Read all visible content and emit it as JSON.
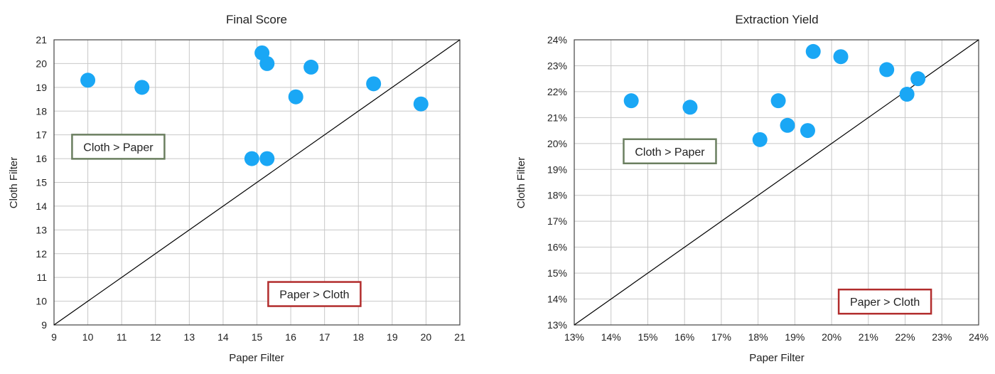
{
  "colors": {
    "point": "#1aa7f5",
    "grid": "#c8c8c8",
    "axis": "#444444",
    "diagonal": "#000000",
    "box_green": "#6b7f60",
    "box_red": "#b22d2d"
  },
  "chart_data": [
    {
      "type": "scatter",
      "title": "Final Score",
      "xlabel": "Paper Filter",
      "ylabel": "Cloth Filter",
      "xlim": [
        9,
        21
      ],
      "ylim": [
        9,
        21
      ],
      "xticks": [
        "9",
        "10",
        "11",
        "12",
        "13",
        "14",
        "15",
        "16",
        "17",
        "18",
        "19",
        "20",
        "21"
      ],
      "yticks": [
        "9",
        "10",
        "11",
        "12",
        "13",
        "14",
        "15",
        "16",
        "17",
        "18",
        "19",
        "20",
        "21"
      ],
      "grid": true,
      "reference_line": "y = x",
      "annotations": [
        {
          "text": "Cloth > Paper",
          "style": "green-box",
          "x": 10.9,
          "y": 16.5
        },
        {
          "text": "Paper > Cloth",
          "style": "red-box",
          "x": 16.7,
          "y": 10.3
        }
      ],
      "points": [
        {
          "x": 10.0,
          "y": 19.3
        },
        {
          "x": 11.6,
          "y": 19.0
        },
        {
          "x": 14.85,
          "y": 16.0
        },
        {
          "x": 15.15,
          "y": 20.45
        },
        {
          "x": 15.3,
          "y": 20.0
        },
        {
          "x": 15.3,
          "y": 16.0
        },
        {
          "x": 16.15,
          "y": 18.6
        },
        {
          "x": 16.6,
          "y": 19.85
        },
        {
          "x": 18.45,
          "y": 19.15
        },
        {
          "x": 19.85,
          "y": 18.3
        }
      ]
    },
    {
      "type": "scatter",
      "title": "Extraction Yield",
      "xlabel": "Paper Filter",
      "ylabel": "Cloth Filter",
      "xlim": [
        13,
        24
      ],
      "ylim": [
        13,
        24
      ],
      "unit": "%",
      "xticks": [
        "13%",
        "14%",
        "15%",
        "16%",
        "17%",
        "18%",
        "19%",
        "20%",
        "21%",
        "22%",
        "23%",
        "24%"
      ],
      "yticks": [
        "13%",
        "14%",
        "15%",
        "16%",
        "17%",
        "18%",
        "19%",
        "20%",
        "21%",
        "22%",
        "23%",
        "24%"
      ],
      "grid": true,
      "reference_line": "y = x",
      "annotations": [
        {
          "text": "Cloth > Paper",
          "style": "green-box",
          "x": 15.6,
          "y": 19.7
        },
        {
          "text": "Paper > Cloth",
          "style": "red-box",
          "x": 21.45,
          "y": 13.9
        }
      ],
      "points": [
        {
          "x": 14.55,
          "y": 21.65
        },
        {
          "x": 16.15,
          "y": 21.4
        },
        {
          "x": 18.05,
          "y": 20.15
        },
        {
          "x": 18.55,
          "y": 21.65
        },
        {
          "x": 18.8,
          "y": 20.7
        },
        {
          "x": 19.35,
          "y": 20.5
        },
        {
          "x": 19.5,
          "y": 23.55
        },
        {
          "x": 20.25,
          "y": 23.35
        },
        {
          "x": 21.5,
          "y": 22.85
        },
        {
          "x": 22.05,
          "y": 21.9
        },
        {
          "x": 22.35,
          "y": 22.5
        }
      ]
    }
  ]
}
